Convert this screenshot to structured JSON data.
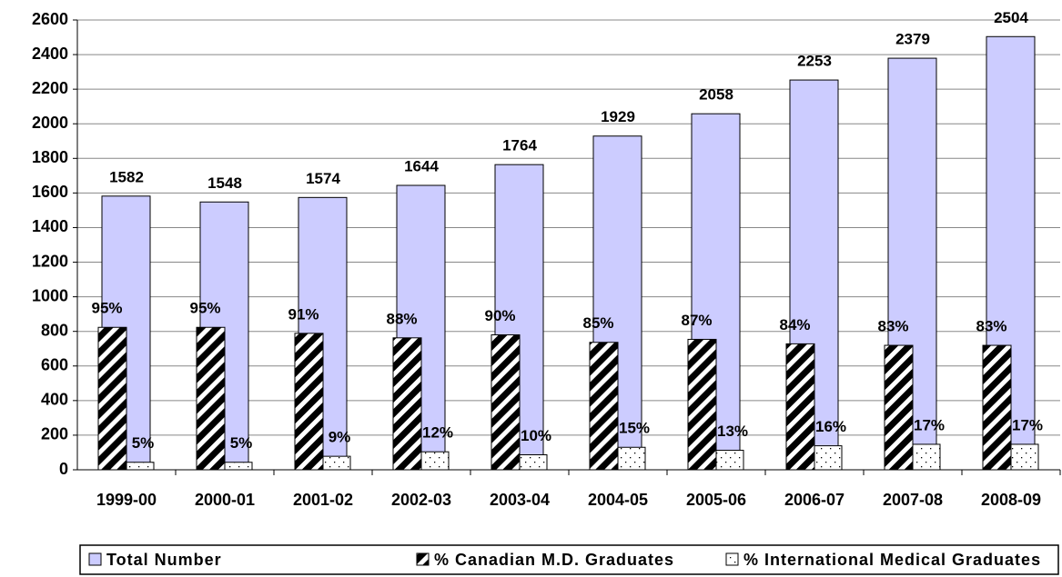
{
  "chart_data": {
    "type": "bar",
    "categories": [
      "1999-00",
      "2000-01",
      "2001-02",
      "2002-03",
      "2003-04",
      "2004-05",
      "2005-06",
      "2006-07",
      "2007-08",
      "2008-09"
    ],
    "series": [
      {
        "name": "Total Number",
        "color": "#ccccff",
        "pattern": "solid",
        "values": [
          1582,
          1548,
          1574,
          1644,
          1764,
          1929,
          2058,
          2253,
          2379,
          2504
        ]
      },
      {
        "name": "% Canadian M.D. Graduates",
        "color": "#000000",
        "pattern": "stripes",
        "axis": "y2",
        "values": [
          95,
          95,
          91,
          88,
          90,
          85,
          87,
          84,
          83,
          83
        ],
        "value_labels": [
          "95%",
          "95%",
          "91%",
          "88%",
          "90%",
          "85%",
          "87%",
          "84%",
          "83%",
          "83%"
        ]
      },
      {
        "name": "% International Medical Graduates",
        "color": "#000000",
        "pattern": "dots",
        "axis": "y2",
        "values": [
          5,
          5,
          9,
          12,
          10,
          15,
          13,
          16,
          17,
          17
        ],
        "value_labels": [
          "5%",
          "5%",
          "9%",
          "12%",
          "10%",
          "15%",
          "13%",
          "16%",
          "17%",
          "17%"
        ]
      }
    ],
    "ylim": [
      0,
      2600
    ],
    "yticks": [
      0,
      200,
      400,
      600,
      800,
      1000,
      1200,
      1400,
      1600,
      1800,
      2000,
      2200,
      2400,
      2600
    ],
    "y2lim": [
      0,
      300
    ],
    "grid": true,
    "legend": "bottom"
  }
}
